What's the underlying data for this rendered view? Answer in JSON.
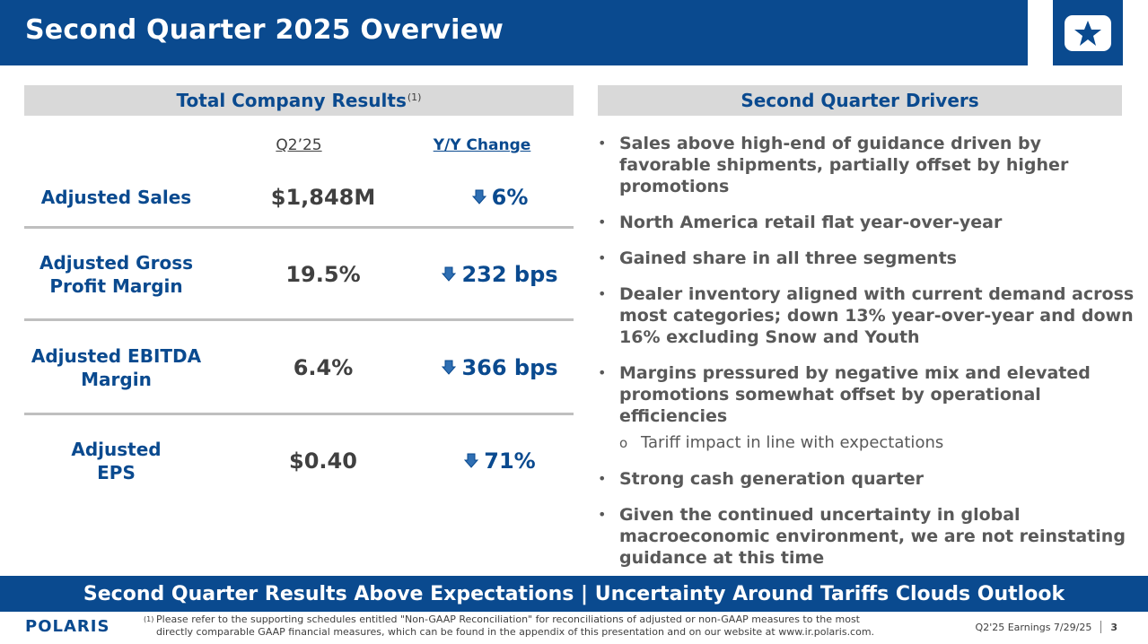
{
  "title": "Second Quarter 2025 Overview",
  "left_panel": {
    "heading": "Total Company Results",
    "heading_sup": "(1)",
    "col_q": "Q2’25",
    "col_yy": "Y/Y Change",
    "rows": [
      {
        "label_line1": "Adjusted Sales",
        "label_line2": "",
        "value": "$1,848M",
        "change": "6%"
      },
      {
        "label_line1": "Adjusted Gross",
        "label_line2": "Profit Margin",
        "value": "19.5%",
        "change": "232 bps"
      },
      {
        "label_line1": "Adjusted EBITDA",
        "label_line2": "Margin",
        "value": "6.4%",
        "change": "366 bps"
      },
      {
        "label_line1": "Adjusted",
        "label_line2": "EPS",
        "value": "$0.40",
        "change": "71%"
      }
    ],
    "change_icon": "down-arrow-icon"
  },
  "right_panel": {
    "heading": "Second Quarter Drivers",
    "bullets": [
      "Sales above high-end of guidance driven by favorable shipments, partially offset by higher promotions",
      "North America retail flat year-over-year",
      "Gained share in all three segments",
      "Dealer inventory aligned with current demand across most categories; down 13% year-over-year and down 16% excluding Snow and Youth",
      "Margins pressured by negative mix and elevated promotions somewhat offset by operational efficiencies",
      "Strong cash generation quarter",
      "Given the continued uncertainty in global macroeconomic environment, we are not reinstating guidance at this time"
    ],
    "sub_bullet": "Tariff impact in line with expectations",
    "bullet_marker": "•",
    "sub_marker": "o"
  },
  "banner": "Second Quarter Results Above Expectations | Uncertainty Around Tariffs Clouds Outlook",
  "footer": {
    "logo_text": "POLARIS",
    "footnote_mark": "(1)",
    "footnote": "Please refer to the supporting schedules entitled \"Non-GAAP Reconciliation\" for reconciliations of adjusted or non-GAAP measures to the most directly comparable GAAP financial measures, which can be found in the appendix of this presentation and on our website at www.ir.polaris.com.",
    "earnings_label": "Q2'25 Earnings 7/29/25",
    "page_number": "3"
  },
  "colors": {
    "brand_blue": "#0a4a8f",
    "header_gray": "#d9d9d9",
    "text_gray": "#595959"
  }
}
